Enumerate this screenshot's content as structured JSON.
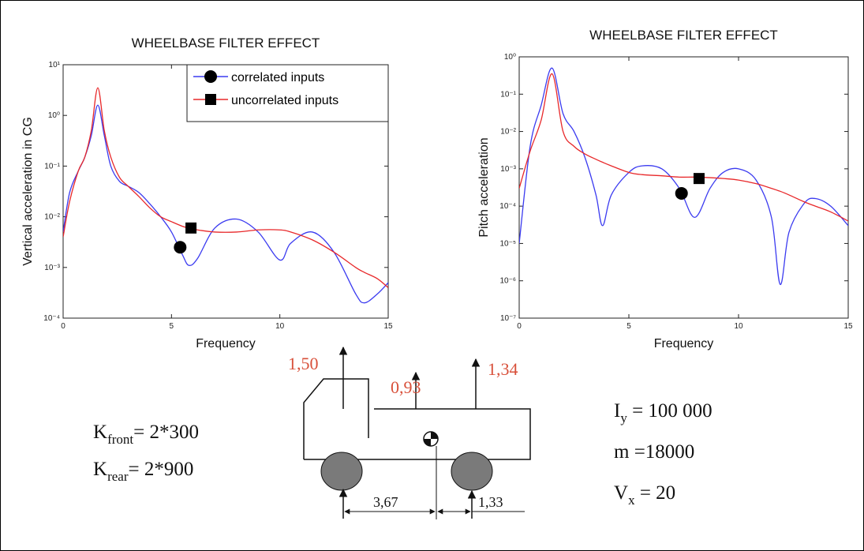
{
  "chart_data": [
    {
      "type": "line",
      "title": "WHEELBASE FILTER EFFECT",
      "xlabel": "Frequency",
      "ylabel": "Vertical acceleration in CG",
      "yscale": "log",
      "xlim": [
        0,
        15
      ],
      "xticks": [
        0,
        5,
        10,
        15
      ],
      "ylim": [
        0.0001,
        10
      ],
      "yticks": [
        {
          "value": 0.0001,
          "label": "10⁻⁴"
        },
        {
          "value": 0.001,
          "label": "10⁻³"
        },
        {
          "value": 0.01,
          "label": "10⁻²"
        },
        {
          "value": 0.1,
          "label": "10⁻¹"
        },
        {
          "value": 1,
          "label": "10⁰"
        },
        {
          "value": 10,
          "label": "10¹"
        }
      ],
      "legend": "upper right",
      "x": [
        0,
        0.3,
        0.7,
        1.0,
        1.3,
        1.6,
        1.9,
        2.2,
        2.6,
        3,
        3.5,
        4,
        4.5,
        5,
        5.5,
        5.8,
        6.2,
        7,
        8,
        9,
        10,
        10.5,
        11.5,
        12.5,
        13.5,
        13.9,
        14.5,
        15
      ],
      "series": [
        {
          "name": "correlated inputs",
          "color": "#3b3bf0",
          "marker": "circle",
          "marker_x": 5.4,
          "marker_y": 0.0025,
          "values": [
            0.005,
            0.03,
            0.08,
            0.15,
            0.4,
            1.6,
            0.4,
            0.1,
            0.05,
            0.04,
            0.03,
            0.018,
            0.01,
            0.005,
            0.0018,
            0.0011,
            0.0015,
            0.006,
            0.009,
            0.005,
            0.0014,
            0.003,
            0.005,
            0.002,
            0.0003,
            0.0002,
            0.0003,
            0.0005
          ]
        },
        {
          "name": "uncorrelated inputs",
          "color": "#e8282a",
          "marker": "square",
          "marker_x": 5.9,
          "marker_y": 0.006,
          "values": [
            0.004,
            0.02,
            0.08,
            0.15,
            0.5,
            3.5,
            0.5,
            0.15,
            0.06,
            0.04,
            0.025,
            0.015,
            0.01,
            0.008,
            0.0065,
            0.006,
            0.0055,
            0.005,
            0.005,
            0.0055,
            0.0055,
            0.005,
            0.0035,
            0.002,
            0.001,
            0.0008,
            0.0006,
            0.0004
          ]
        }
      ]
    },
    {
      "type": "line",
      "title": "WHEELBASE FILTER EFFECT",
      "xlabel": "Frequency",
      "ylabel": "Pitch acceleration",
      "yscale": "log",
      "xlim": [
        0,
        15
      ],
      "xticks": [
        0,
        5,
        10,
        15
      ],
      "ylim": [
        1e-07,
        1
      ],
      "yticks": [
        {
          "value": 1e-07,
          "label": "10⁻⁷"
        },
        {
          "value": 1e-06,
          "label": "10⁻⁶"
        },
        {
          "value": 1e-05,
          "label": "10⁻⁵"
        },
        {
          "value": 0.0001,
          "label": "10⁻⁴"
        },
        {
          "value": 0.001,
          "label": "10⁻³"
        },
        {
          "value": 0.01,
          "label": "10⁻²"
        },
        {
          "value": 0.1,
          "label": "10⁻¹"
        },
        {
          "value": 1,
          "label": "10⁰"
        }
      ],
      "x": [
        0,
        0.5,
        1.0,
        1.5,
        2.0,
        2.5,
        3,
        3.5,
        3.8,
        4.2,
        5,
        5.6,
        6.5,
        7.3,
        8,
        8.7,
        9.3,
        10,
        10.8,
        11.5,
        11.9,
        12.3,
        13,
        13.5,
        14.2,
        15
      ],
      "series": [
        {
          "color": "#3b3bf0",
          "marker": "circle",
          "marker_x": 7.4,
          "marker_y": 0.00022,
          "values": [
            1e-05,
            0.004,
            0.05,
            0.5,
            0.03,
            0.01,
            0.002,
            0.0002,
            3e-05,
            0.0002,
            0.0008,
            0.0012,
            0.001,
            0.0003,
            5e-05,
            0.0003,
            0.0008,
            0.001,
            0.0005,
            5e-05,
            8e-07,
            2e-05,
            0.00012,
            0.00016,
            0.0001,
            3e-05
          ]
        },
        {
          "color": "#e8282a",
          "marker": "square",
          "marker_x": 8.2,
          "marker_y": 0.00055,
          "values": [
            0.0003,
            0.003,
            0.02,
            0.35,
            0.01,
            0.004,
            0.0025,
            0.0018,
            0.0015,
            0.0012,
            0.0008,
            0.0007,
            0.00065,
            0.0006,
            0.0006,
            0.00058,
            0.00055,
            0.0005,
            0.0004,
            0.0003,
            0.00025,
            0.0002,
            0.00013,
            0.0001,
            7e-05,
            4e-05
          ]
        }
      ]
    }
  ],
  "diagram": {
    "forces": [
      "1,50",
      "0,93",
      "1,34"
    ],
    "dimensions": [
      "3,67",
      "1,33"
    ],
    "stiffness": [
      {
        "symbol": "K",
        "subscript": "front",
        "text": "= 2*300"
      },
      {
        "symbol": "K",
        "subscript": "rear",
        "text": "= 2*900"
      }
    ],
    "parameters": [
      {
        "symbol": "I",
        "subscript": "y",
        "text": " = 100 000"
      },
      {
        "text": "m =18000"
      },
      {
        "symbol": "V",
        "subscript": "x",
        "text": " = 20"
      }
    ]
  }
}
